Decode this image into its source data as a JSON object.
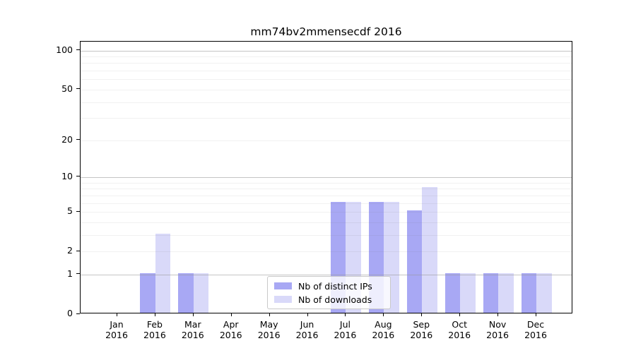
{
  "title": "mm74bv2mmensecdf 2016",
  "chart_data": {
    "type": "bar",
    "title": "mm74bv2mmensecdf 2016",
    "categories": [
      "Jan",
      "Feb",
      "Mar",
      "Apr",
      "May",
      "Jun",
      "Jul",
      "Aug",
      "Sep",
      "Oct",
      "Nov",
      "Dec"
    ],
    "x_year_label": "2016",
    "series": [
      {
        "name": "Nb of distinct IPs",
        "color": "#a8a8f4",
        "values": [
          0,
          1,
          1,
          0,
          0,
          0,
          6,
          6,
          5,
          1,
          1,
          1
        ]
      },
      {
        "name": "Nb of downloads",
        "color": "#d9d9f9",
        "values": [
          0,
          3,
          1,
          0,
          0,
          0,
          6,
          6,
          8,
          1,
          1,
          1
        ]
      }
    ],
    "yscale": "log1p",
    "ylim": [
      0,
      117
    ],
    "y_major_ticks": [
      0,
      1,
      2,
      5,
      10,
      20,
      50,
      100
    ],
    "y_grid_strong": [
      1,
      10,
      100
    ],
    "y_grid_faint": [
      2,
      3,
      4,
      5,
      6,
      7,
      8,
      9,
      20,
      30,
      40,
      50,
      60,
      70,
      80,
      90
    ],
    "grid": true,
    "legend_position": "lower-center-inside"
  }
}
